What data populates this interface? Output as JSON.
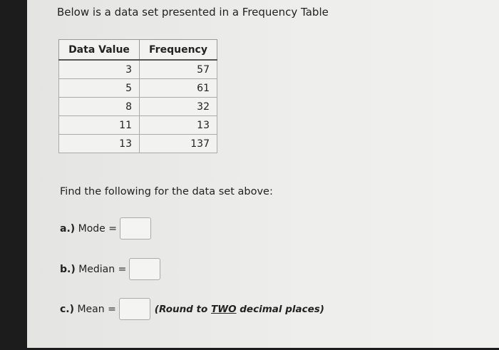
{
  "title": "Below is a data set presented in a Frequency Table",
  "table": {
    "headers": [
      "Data Value",
      "Frequency"
    ],
    "rows": [
      [
        "3",
        "57"
      ],
      [
        "5",
        "61"
      ],
      [
        "8",
        "32"
      ],
      [
        "11",
        "13"
      ],
      [
        "13",
        "137"
      ]
    ]
  },
  "instruction": "Find the following for the data set above:",
  "questions": {
    "a": {
      "prefix": "a.)",
      "label": "Mode =",
      "value": ""
    },
    "b": {
      "prefix": "b.)",
      "label": "Median =",
      "value": ""
    },
    "c": {
      "prefix": "c.)",
      "label": "Mean =",
      "value": "",
      "note_pre": "(Round to ",
      "note_em": "TWO",
      "note_post": " decimal places)"
    }
  }
}
